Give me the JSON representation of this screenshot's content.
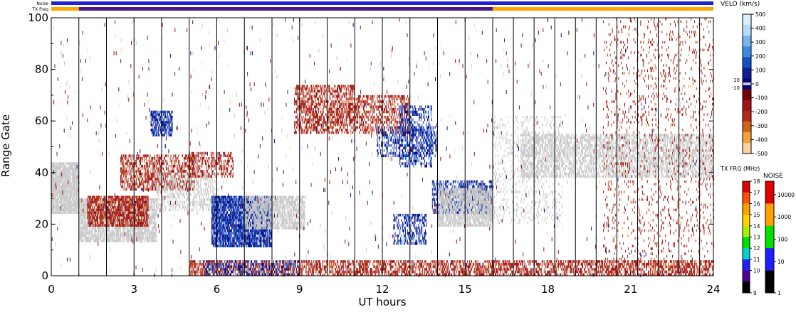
{
  "chart_data": {
    "type": "heatmap",
    "xlabel": "UT hours",
    "ylabel": "Range Gate",
    "xlim": [
      0,
      24
    ],
    "ylim": [
      0,
      100
    ],
    "x_ticks": [
      "0",
      "3",
      "6",
      "9",
      "12",
      "15",
      "18",
      "21",
      "24"
    ],
    "y_ticks": [
      "0",
      "20",
      "40",
      "60",
      "80",
      "100"
    ],
    "scan_boundaries_hours": [
      1,
      2,
      3,
      4,
      5,
      6,
      7,
      8,
      9,
      10,
      11,
      12,
      13,
      14,
      15,
      16,
      16.75,
      17.5,
      18.25,
      19,
      19.75,
      20.5,
      21.25,
      22,
      22.75,
      23.5
    ],
    "status_bars": {
      "noise_label": "Noise",
      "txfreq_label": "TX Freq",
      "noise_color": "#2020d0",
      "txfreq_segments": [
        {
          "from": 0,
          "to": 1,
          "color": "#ffa500"
        },
        {
          "from": 1,
          "to": 16,
          "color": "#4a1a8a"
        },
        {
          "from": 16,
          "to": 24,
          "color": "#ffa500"
        }
      ]
    },
    "velocity_scale": {
      "title": "VELO (km/s)",
      "ticks": [
        "500",
        "400",
        "300",
        "200",
        "100",
        "0",
        "-100",
        "-200",
        "-300",
        "-400",
        "-500"
      ],
      "ground_scatter_ticks": [
        "10",
        "-10"
      ],
      "colors": [
        "#dcefff",
        "#b4dcff",
        "#78b4f0",
        "#3c8ce6",
        "#1450c8",
        "#0a1e96",
        "#000080",
        "#780000",
        "#a01414",
        "#b42814",
        "#d26414",
        "#f5a03c",
        "#ffd2a0"
      ],
      "ground_scatter_color": "#c8c8c8"
    },
    "txfreq_scale": {
      "title": "TX FRQ (MHz)",
      "ticks": [
        "18",
        "17",
        "16",
        "15",
        "14",
        "13",
        "12",
        "11",
        "10",
        "9"
      ],
      "colors": [
        "#e10000",
        "#ff5000",
        "#ffa000",
        "#ffd200",
        "#aaf000",
        "#00e000",
        "#00d2d2",
        "#1e1eff",
        "#50009a",
        "#000000"
      ]
    },
    "noise_scale": {
      "title": "NOISE",
      "ticks": [
        "10000",
        "1000",
        "100",
        "10",
        "1"
      ],
      "colors": [
        "#e10000",
        "#ffa000",
        "#00e000",
        "#1e1eff",
        "#000000"
      ]
    },
    "regions": [
      {
        "kind": "ground",
        "t0": 0,
        "t1": 1,
        "g0": 24,
        "g1": 44,
        "density": 0.9
      },
      {
        "kind": "ground",
        "t0": 1,
        "t1": 3.8,
        "g0": 13,
        "g1": 30,
        "density": 0.8
      },
      {
        "kind": "neg",
        "t0": 1.3,
        "t1": 3.5,
        "g0": 19,
        "g1": 31,
        "density": 0.75
      },
      {
        "kind": "neg",
        "t0": 2.5,
        "t1": 5.2,
        "g0": 33,
        "g1": 47,
        "density": 0.5
      },
      {
        "kind": "ground",
        "t0": 3.8,
        "t1": 6.0,
        "g0": 25,
        "g1": 40,
        "density": 0.4
      },
      {
        "kind": "neg",
        "t0": 5.0,
        "t1": 6.6,
        "g0": 38,
        "g1": 48,
        "density": 0.4
      },
      {
        "kind": "pos",
        "t0": 3.6,
        "t1": 4.4,
        "g0": 54,
        "g1": 64,
        "density": 0.7
      },
      {
        "kind": "pos",
        "t0": 5.8,
        "t1": 8.0,
        "g0": 11,
        "g1": 31,
        "density": 0.9
      },
      {
        "kind": "ground",
        "t0": 7.0,
        "t1": 9.2,
        "g0": 18,
        "g1": 31,
        "density": 0.7
      },
      {
        "kind": "neg",
        "t0": 8.8,
        "t1": 11.0,
        "g0": 55,
        "g1": 74,
        "density": 0.55
      },
      {
        "kind": "neg",
        "t0": 11.0,
        "t1": 13.0,
        "g0": 55,
        "g1": 70,
        "density": 0.45
      },
      {
        "kind": "pos",
        "t0": 12.6,
        "t1": 13.8,
        "g0": 42,
        "g1": 66,
        "density": 0.4
      },
      {
        "kind": "pos",
        "t0": 11.8,
        "t1": 14.0,
        "g0": 46,
        "g1": 58,
        "density": 0.35
      },
      {
        "kind": "pos",
        "t0": 13.8,
        "t1": 16.0,
        "g0": 24,
        "g1": 37,
        "density": 0.5
      },
      {
        "kind": "ground",
        "t0": 14.0,
        "t1": 16.0,
        "g0": 19,
        "g1": 34,
        "density": 0.75
      },
      {
        "kind": "pos",
        "t0": 12.4,
        "t1": 13.6,
        "g0": 12,
        "g1": 24,
        "density": 0.45
      },
      {
        "kind": "neg",
        "t0": 5.0,
        "t1": 24.0,
        "g0": 0,
        "g1": 6,
        "density": 0.55
      },
      {
        "kind": "pos",
        "t0": 5.5,
        "t1": 9.0,
        "g0": 0,
        "g1": 6,
        "density": 0.35
      },
      {
        "kind": "ground",
        "t0": 17.0,
        "t1": 24.0,
        "g0": 38,
        "g1": 55,
        "density": 0.55
      },
      {
        "kind": "ground",
        "t0": 16.0,
        "t1": 18.5,
        "g0": 20,
        "g1": 62,
        "density": 0.15
      },
      {
        "kind": "neg",
        "t0": 20.0,
        "t1": 24.0,
        "g0": 0,
        "g1": 100,
        "density": 0.08
      }
    ]
  }
}
